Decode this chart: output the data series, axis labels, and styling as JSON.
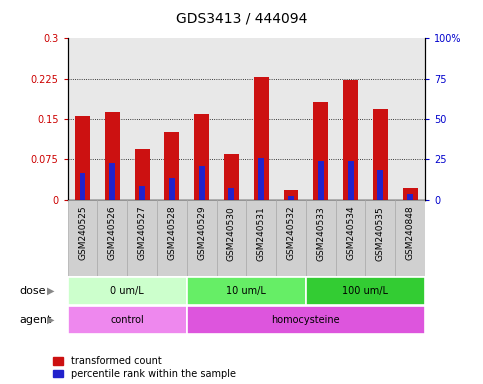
{
  "title": "GDS3413 / 444094",
  "categories": [
    "GSM240525",
    "GSM240526",
    "GSM240527",
    "GSM240528",
    "GSM240529",
    "GSM240530",
    "GSM240531",
    "GSM240532",
    "GSM240533",
    "GSM240534",
    "GSM240535",
    "GSM240848"
  ],
  "red_values": [
    0.155,
    0.163,
    0.095,
    0.125,
    0.16,
    0.085,
    0.228,
    0.018,
    0.182,
    0.222,
    0.168,
    0.022
  ],
  "blue_values": [
    0.05,
    0.068,
    0.025,
    0.04,
    0.062,
    0.022,
    0.077,
    0.006,
    0.072,
    0.072,
    0.055,
    0.01
  ],
  "ylim_left": [
    0,
    0.3
  ],
  "ylim_right": [
    0,
    100
  ],
  "yticks_left": [
    0,
    0.075,
    0.15,
    0.225,
    0.3
  ],
  "ytick_labels_left": [
    "0",
    "0.075",
    "0.15",
    "0.225",
    "0.3"
  ],
  "yticks_right": [
    0,
    25,
    50,
    75,
    100
  ],
  "ytick_labels_right": [
    "0",
    "25",
    "50",
    "75",
    "100%"
  ],
  "grid_lines": [
    0.075,
    0.15,
    0.225
  ],
  "dose_groups": [
    {
      "label": "0 um/L",
      "start": 0,
      "end": 4,
      "color": "#ccffcc"
    },
    {
      "label": "10 um/L",
      "start": 4,
      "end": 8,
      "color": "#66ee66"
    },
    {
      "label": "100 um/L",
      "start": 8,
      "end": 12,
      "color": "#33cc33"
    }
  ],
  "agent_groups": [
    {
      "label": "control",
      "start": 0,
      "end": 4,
      "color": "#ee88ee"
    },
    {
      "label": "homocysteine",
      "start": 4,
      "end": 12,
      "color": "#dd55dd"
    }
  ],
  "bar_color_red": "#cc1111",
  "bar_color_blue": "#2222cc",
  "bar_width": 0.5,
  "background_color": "#ffffff",
  "plot_bg_color": "#e8e8e8",
  "xtick_bg_color": "#d0d0d0",
  "dose_row_label": "dose",
  "agent_row_label": "agent",
  "legend_red_label": "transformed count",
  "legend_blue_label": "percentile rank within the sample",
  "title_fontsize": 10,
  "tick_fontsize": 7,
  "xtick_fontsize": 6.5,
  "label_fontsize": 8,
  "row_label_fontsize": 8
}
